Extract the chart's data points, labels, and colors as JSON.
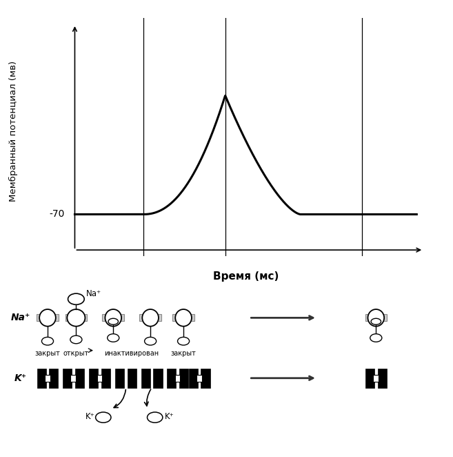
{
  "bg_color": "#ffffff",
  "graph_ylabel": "Мембранный потенциал (мв)",
  "graph_xlabel": "Время (мс)",
  "resting_potential": -70,
  "states_labels": [
    "закрыт",
    "открыт",
    "инактивирован",
    "закрыт"
  ]
}
